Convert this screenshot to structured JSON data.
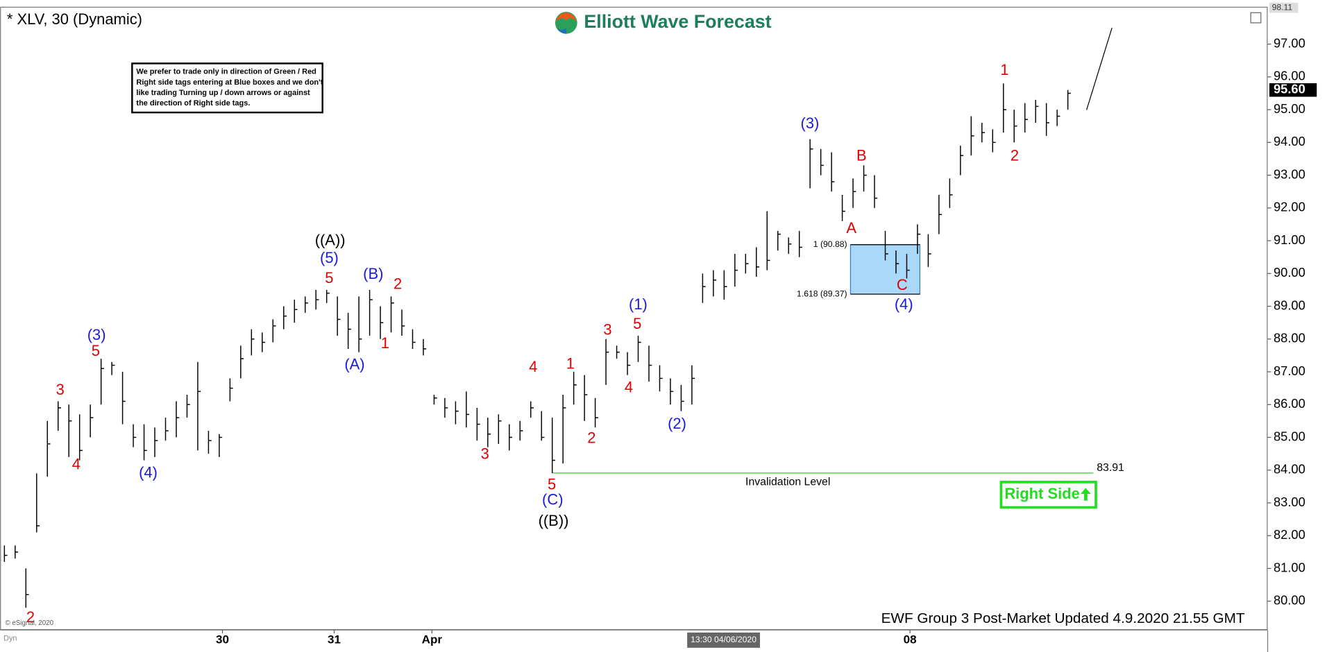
{
  "chart_data": {
    "type": "ohlc",
    "title": "* XLV, 30 (Dynamic)",
    "brand": "Elliott Wave Forecast",
    "note": [
      "We prefer to trade only in direction of Green / Red",
      "Right side tags entering at Blue boxes and we don't",
      "like trading Turning up / down arrows or against",
      "the direction of Right side tags."
    ],
    "footer": "EWF Group 3 Post-Market Updated 4.9.2020 21.55 GMT",
    "copyright": "© eSignal, 2020",
    "corner_label": "Dyn",
    "cursor_label": "13:30 04/06/2020",
    "bar_color": "#000000",
    "ylim": [
      79.12,
      98.14
    ],
    "yticks": [
      {
        "value": 80,
        "label": "80.00"
      },
      {
        "value": 81,
        "label": "81.00"
      },
      {
        "value": 82,
        "label": "82.00"
      },
      {
        "value": 83,
        "label": "83.00"
      },
      {
        "value": 84,
        "label": "84.00"
      },
      {
        "value": 85,
        "label": "85.00"
      },
      {
        "value": 86,
        "label": "86.00"
      },
      {
        "value": 87,
        "label": "87.00"
      },
      {
        "value": 88,
        "label": "88.00"
      },
      {
        "value": 89,
        "label": "89.00"
      },
      {
        "value": 90,
        "label": "90.00"
      },
      {
        "value": 91,
        "label": "91.00"
      },
      {
        "value": 92,
        "label": "92.00"
      },
      {
        "value": 93,
        "label": "93.00"
      },
      {
        "value": 94,
        "label": "94.00"
      },
      {
        "value": 95,
        "label": "95.00"
      },
      {
        "value": 96,
        "label": "96.00"
      },
      {
        "value": 97,
        "label": "97.00"
      }
    ],
    "xlim": [
      -0.4,
      117.6
    ],
    "xticks": [
      {
        "value": 20.3,
        "label": "30"
      },
      {
        "value": 30.7,
        "label": "31"
      },
      {
        "value": 39.8,
        "label": "Apr"
      },
      {
        "value": 84.3,
        "label": "08"
      }
    ],
    "high": [
      81.7,
      81.7,
      81.0,
      83.9,
      85.5,
      86.1,
      86.0,
      85.7,
      86.0,
      87.4,
      87.3,
      87.0,
      85.4,
      85.4,
      85.3,
      85.6,
      86.1,
      86.3,
      87.3,
      85.2,
      85.1,
      86.8,
      87.8,
      88.3,
      88.2,
      88.6,
      89.0,
      89.2,
      89.3,
      89.5,
      89.5,
      89.3,
      88.8,
      89.3,
      89.5,
      89.0,
      89.3,
      88.9,
      88.3,
      88.0,
      86.3,
      86.2,
      86.1,
      86.4,
      85.9,
      85.6,
      85.7,
      85.4,
      85.5,
      86.1,
      85.8,
      85.6,
      86.3,
      87.0,
      86.9,
      86.2,
      88.0,
      87.8,
      87.6,
      88.1,
      87.8,
      87.2,
      86.8,
      86.6,
      87.2,
      90.0,
      90.1,
      90.1,
      90.6,
      90.6,
      90.8,
      91.9,
      91.3,
      91.1,
      91.3,
      94.1,
      93.8,
      93.7,
      92.4,
      92.9,
      93.3,
      93.0,
      91.3,
      90.7,
      90.6,
      91.5,
      91.2,
      92.4,
      92.9,
      93.9,
      94.8,
      94.6,
      94.4,
      95.8,
      95.0,
      95.2,
      95.3,
      95.2,
      95.0,
      95.6
    ],
    "low": [
      81.2,
      81.3,
      79.8,
      82.1,
      83.8,
      85.2,
      84.4,
      84.3,
      85.0,
      86.0,
      86.9,
      85.4,
      84.7,
      84.3,
      84.4,
      84.9,
      85.0,
      85.6,
      84.6,
      84.5,
      84.4,
      86.1,
      86.8,
      87.5,
      87.6,
      87.9,
      88.3,
      88.5,
      88.8,
      88.9,
      89.1,
      88.1,
      87.7,
      87.6,
      88.1,
      88.0,
      88.2,
      88.1,
      87.7,
      87.5,
      86.0,
      85.6,
      85.4,
      85.3,
      84.9,
      84.7,
      84.8,
      84.6,
      84.9,
      85.6,
      84.9,
      83.91,
      84.2,
      86.0,
      85.5,
      85.3,
      86.6,
      87.4,
      86.9,
      87.3,
      86.7,
      86.4,
      86.0,
      85.8,
      86.0,
      89.1,
      89.3,
      89.2,
      89.6,
      90.0,
      89.9,
      90.1,
      90.7,
      90.6,
      90.5,
      92.6,
      93.0,
      92.5,
      91.6,
      92.0,
      92.5,
      92.0,
      90.4,
      90.0,
      89.85,
      90.6,
      90.2,
      91.2,
      92.0,
      93.0,
      93.6,
      94.0,
      93.7,
      94.3,
      94.0,
      94.3,
      94.6,
      94.2,
      94.5,
      95.0
    ],
    "close": [
      81.4,
      81.5,
      80.2,
      82.3,
      84.8,
      85.9,
      85.5,
      84.6,
      85.6,
      87.1,
      87.2,
      86.1,
      85.0,
      84.6,
      84.9,
      85.2,
      85.6,
      86.0,
      86.4,
      84.9,
      85.0,
      86.5,
      87.4,
      88.0,
      87.9,
      88.4,
      88.7,
      88.9,
      89.1,
      89.2,
      89.4,
      88.6,
      88.3,
      88.0,
      89.2,
      88.5,
      89.1,
      88.4,
      87.9,
      87.7,
      86.2,
      85.9,
      85.8,
      85.7,
      85.4,
      85.1,
      85.5,
      85.0,
      85.2,
      85.9,
      85.0,
      84.3,
      85.9,
      86.6,
      86.3,
      85.6,
      87.6,
      87.6,
      87.2,
      87.9,
      87.2,
      86.8,
      86.4,
      86.1,
      86.8,
      89.6,
      89.8,
      89.6,
      90.1,
      90.3,
      90.2,
      90.4,
      91.2,
      90.9,
      90.8,
      93.8,
      93.3,
      92.8,
      91.9,
      92.5,
      93.0,
      92.3,
      90.6,
      90.3,
      90.1,
      91.2,
      90.6,
      91.8,
      92.4,
      93.6,
      94.2,
      94.3,
      94.0,
      95.0,
      94.5,
      94.7,
      95.1,
      94.6,
      94.8,
      95.5
    ],
    "last_price": {
      "value": 95.6,
      "label": "95.60"
    },
    "top_price": 98.11,
    "invalidation": {
      "value": 83.91,
      "label": "Invalidation Level",
      "color": "#33cc33"
    },
    "fib_levels": [
      {
        "value": 90.88,
        "label": "1 (90.88)"
      },
      {
        "value": 89.37,
        "label": "1.618 (89.37)"
      }
    ],
    "blue_box_color": "#a9d8f8",
    "right_side": {
      "label": "Right Side",
      "color": "#22dd22"
    },
    "wave_labels": [
      {
        "text": "2",
        "color": "#e00000"
      },
      {
        "text": "3",
        "color": "#e00000"
      },
      {
        "text": "4",
        "color": "#e00000"
      },
      {
        "text": "5",
        "color": "#e00000"
      },
      {
        "text": "(3)",
        "color": "#1a1adc"
      },
      {
        "text": "(4)",
        "color": "#1a1adc"
      },
      {
        "text": "((A))",
        "color": "#000000"
      },
      {
        "text": "(5)",
        "color": "#1a1adc"
      },
      {
        "text": "5",
        "color": "#e00000"
      },
      {
        "text": "(B)",
        "color": "#1a1adc"
      },
      {
        "text": "2",
        "color": "#e00000"
      },
      {
        "text": "(A)",
        "color": "#1a1adc"
      },
      {
        "text": "1",
        "color": "#e00000"
      },
      {
        "text": "3",
        "color": "#e00000"
      },
      {
        "text": "4",
        "color": "#e00000"
      },
      {
        "text": "5",
        "color": "#e00000"
      },
      {
        "text": "(C)",
        "color": "#1a1adc"
      },
      {
        "text": "((B))",
        "color": "#000000"
      },
      {
        "text": "1",
        "color": "#e00000"
      },
      {
        "text": "2",
        "color": "#e00000"
      },
      {
        "text": "3",
        "color": "#e00000"
      },
      {
        "text": "4",
        "color": "#e00000"
      },
      {
        "text": "5",
        "color": "#e00000"
      },
      {
        "text": "(1)",
        "color": "#1a1adc"
      },
      {
        "text": "(2)",
        "color": "#1a1adc"
      },
      {
        "text": "(3)",
        "color": "#1a1adc"
      },
      {
        "text": "A",
        "color": "#e00000"
      },
      {
        "text": "B",
        "color": "#e00000"
      },
      {
        "text": "C",
        "color": "#e00000"
      },
      {
        "text": "(4)",
        "color": "#1a1adc"
      },
      {
        "text": "1",
        "color": "#e00000"
      },
      {
        "text": "2",
        "color": "#e00000"
      }
    ]
  }
}
